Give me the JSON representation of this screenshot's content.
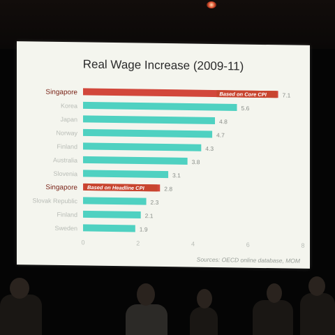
{
  "slide": {
    "title": "Real Wage Increase (2009-11)",
    "source": "Sources: OECD online database, MOM"
  },
  "chart_data": {
    "type": "bar",
    "orientation": "horizontal",
    "title": "Real Wage Increase (2009-11)",
    "categories": [
      "Singapore",
      "Korea",
      "Japan",
      "Norway",
      "Finland",
      "Australia",
      "Slovenia",
      "Singapore",
      "Slovak Republic",
      "Finland",
      "Sweden"
    ],
    "values": [
      7.1,
      5.6,
      4.8,
      4.7,
      4.3,
      3.8,
      3.1,
      2.8,
      2.3,
      2.1,
      1.9
    ],
    "value_labels": [
      "7.1",
      "5.6",
      "4.8",
      "4.7",
      "4.3",
      "3.8",
      "3.1",
      "2.8",
      "2.3",
      "2.1",
      "1.9"
    ],
    "highlight_indices": [
      0,
      7
    ],
    "annotations": [
      "Based on Core CPI",
      "Based on Headline CPI"
    ],
    "xlim": [
      0,
      8
    ],
    "xticks": [
      "0",
      "2",
      "4",
      "6",
      "8"
    ],
    "colors": {
      "bar": "#4fd1c1",
      "highlight": "#d2473b",
      "highlight_label": "#c8452f"
    }
  }
}
